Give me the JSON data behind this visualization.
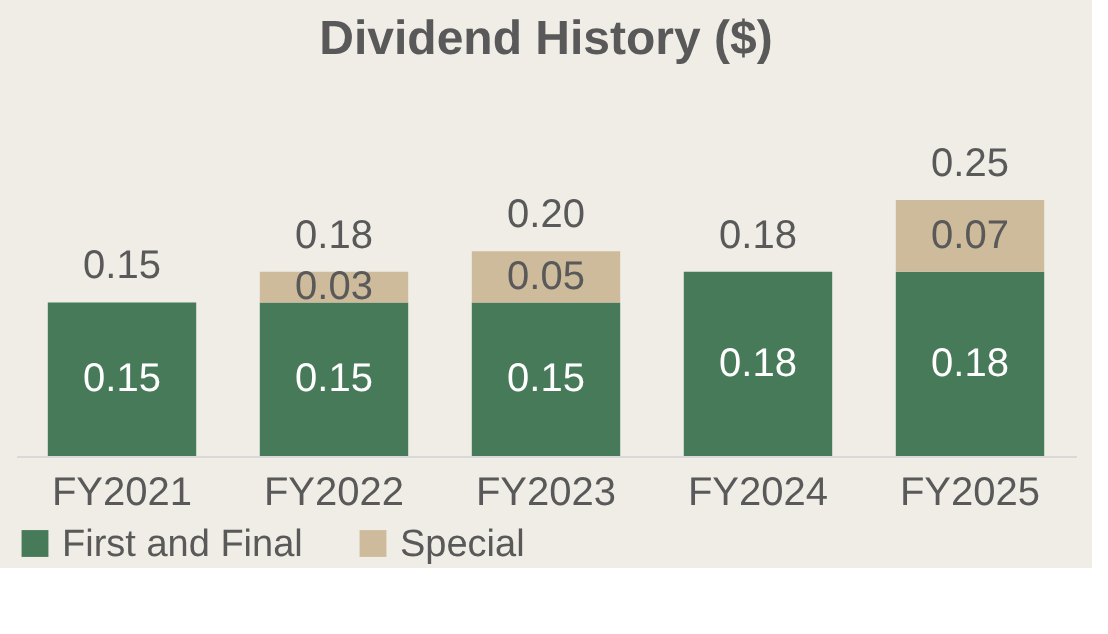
{
  "chart_data": {
    "type": "bar",
    "title": "Dividend History ($)",
    "categories": [
      "FY2021",
      "FY2022",
      "FY2023",
      "FY2024",
      "FY2025"
    ],
    "stacked": true,
    "data_labels": true,
    "series": [
      {
        "name": "First and Final",
        "color": "#467a58",
        "values": [
          0.15,
          0.15,
          0.15,
          0.18,
          0.18
        ]
      },
      {
        "name": "Special",
        "color": "#cdbb9b",
        "values": [
          null,
          0.03,
          0.05,
          null,
          0.07
        ]
      }
    ],
    "totals": [
      "0.15",
      "0.18",
      "0.20",
      "0.18",
      "0.25"
    ],
    "legend": "bottom",
    "grid": false
  }
}
